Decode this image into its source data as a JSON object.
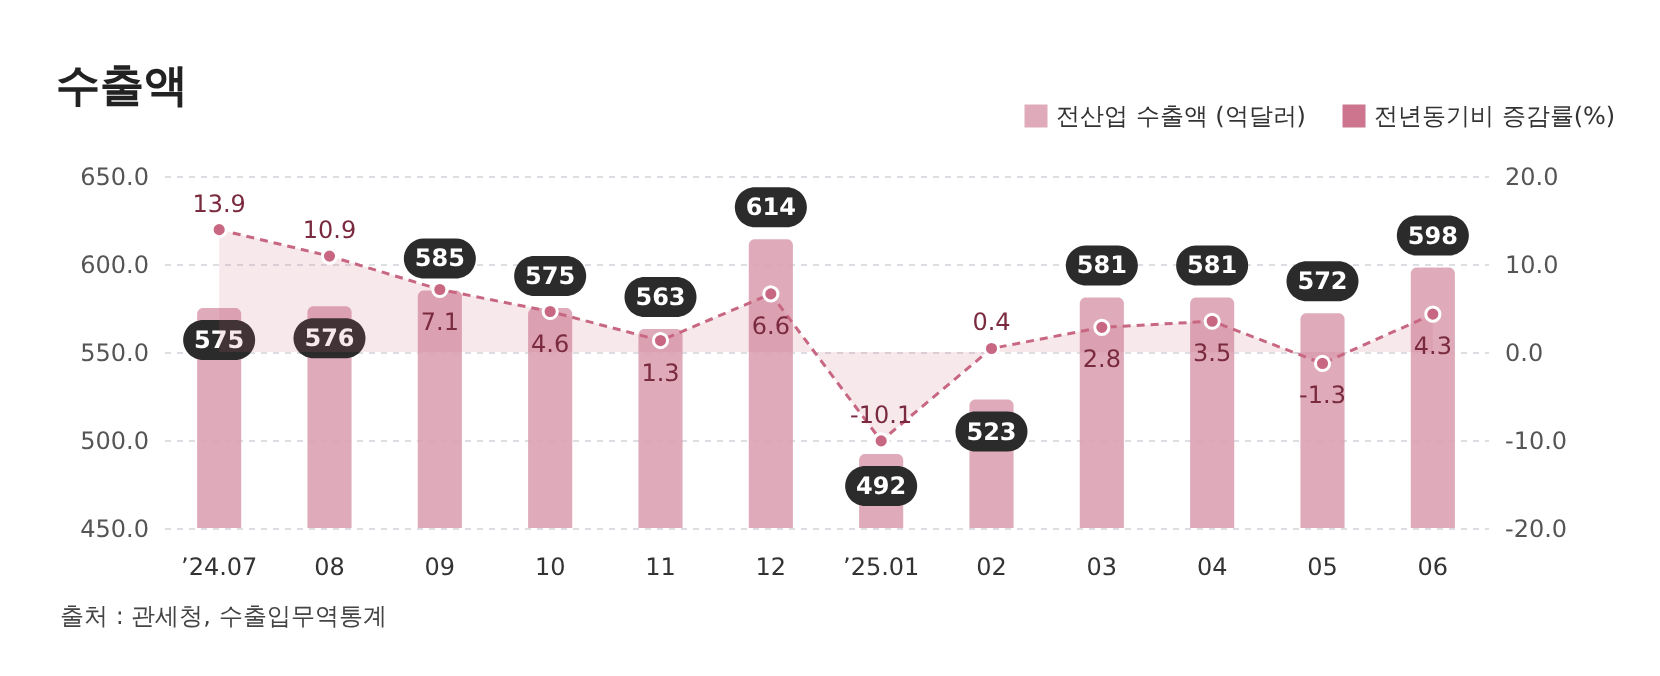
{
  "chart_data": {
    "type": "bar",
    "title": "수출액",
    "categories": [
      "’24.07",
      "08",
      "09",
      "10",
      "11",
      "12",
      "’25.01",
      "02",
      "03",
      "04",
      "05",
      "06"
    ],
    "series": [
      {
        "name": "전산업 수출액 (억달러)",
        "color": "#dca2b3",
        "values": [
          575,
          576,
          585,
          575,
          563,
          614,
          492,
          523,
          581,
          581,
          572,
          598
        ]
      },
      {
        "name": "전년동기비 증감률(%)",
        "type": "area",
        "axis": "y2",
        "color": "#c86782",
        "marker": "circle",
        "line_style": "dashed",
        "values": [
          13.9,
          10.9,
          7.1,
          4.6,
          1.3,
          6.6,
          -10.1,
          0.4,
          2.8,
          3.5,
          -1.3,
          4.3
        ]
      }
    ],
    "ylim": [
      450,
      650
    ],
    "yticks": [
      {
        "value": 450,
        "label": "450.0"
      },
      {
        "value": 500,
        "label": "500.0"
      },
      {
        "value": 550,
        "label": "550.0"
      },
      {
        "value": 600,
        "label": "600.0"
      },
      {
        "value": 650,
        "label": "650.0"
      }
    ],
    "y2lim": [
      -20,
      20
    ],
    "y2ticks": [
      {
        "value": -20,
        "label": "-20.0"
      },
      {
        "value": -10,
        "label": "-10.0"
      },
      {
        "value": 0,
        "label": "0.0"
      },
      {
        "value": 10,
        "label": "10.0"
      },
      {
        "value": 20,
        "label": "20.0"
      }
    ],
    "grid": "y",
    "legend": "top right",
    "data_labels": true,
    "annotations": [
      "출처 : 관세청, 수출입무역통계"
    ]
  }
}
